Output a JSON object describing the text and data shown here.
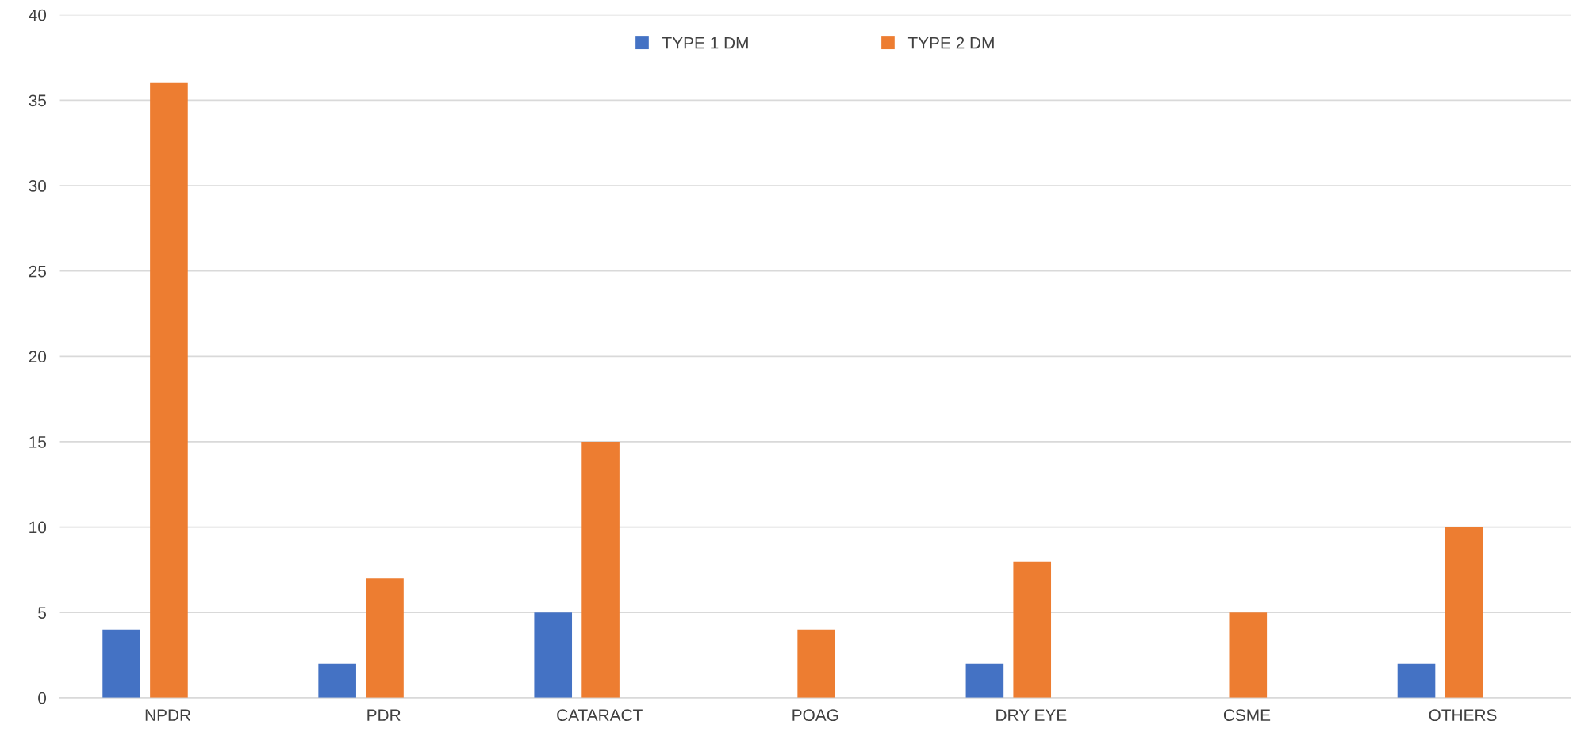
{
  "chart_data": {
    "type": "bar",
    "categories": [
      "NPDR",
      "PDR",
      "CATARACT",
      "POAG",
      "DRY EYE",
      "CSME",
      "OTHERS"
    ],
    "series": [
      {
        "name": "TYPE 1 DM",
        "color": "#4472c4",
        "values": [
          4,
          2,
          5,
          0,
          2,
          0,
          2
        ]
      },
      {
        "name": "TYPE 2 DM",
        "color": "#ed7d31",
        "values": [
          36,
          7,
          15,
          4,
          8,
          5,
          10
        ]
      }
    ],
    "ylim": [
      0,
      40
    ],
    "yticks": [
      0,
      5,
      10,
      15,
      20,
      25,
      30,
      35,
      40
    ],
    "grid": "y",
    "legend": "top"
  }
}
